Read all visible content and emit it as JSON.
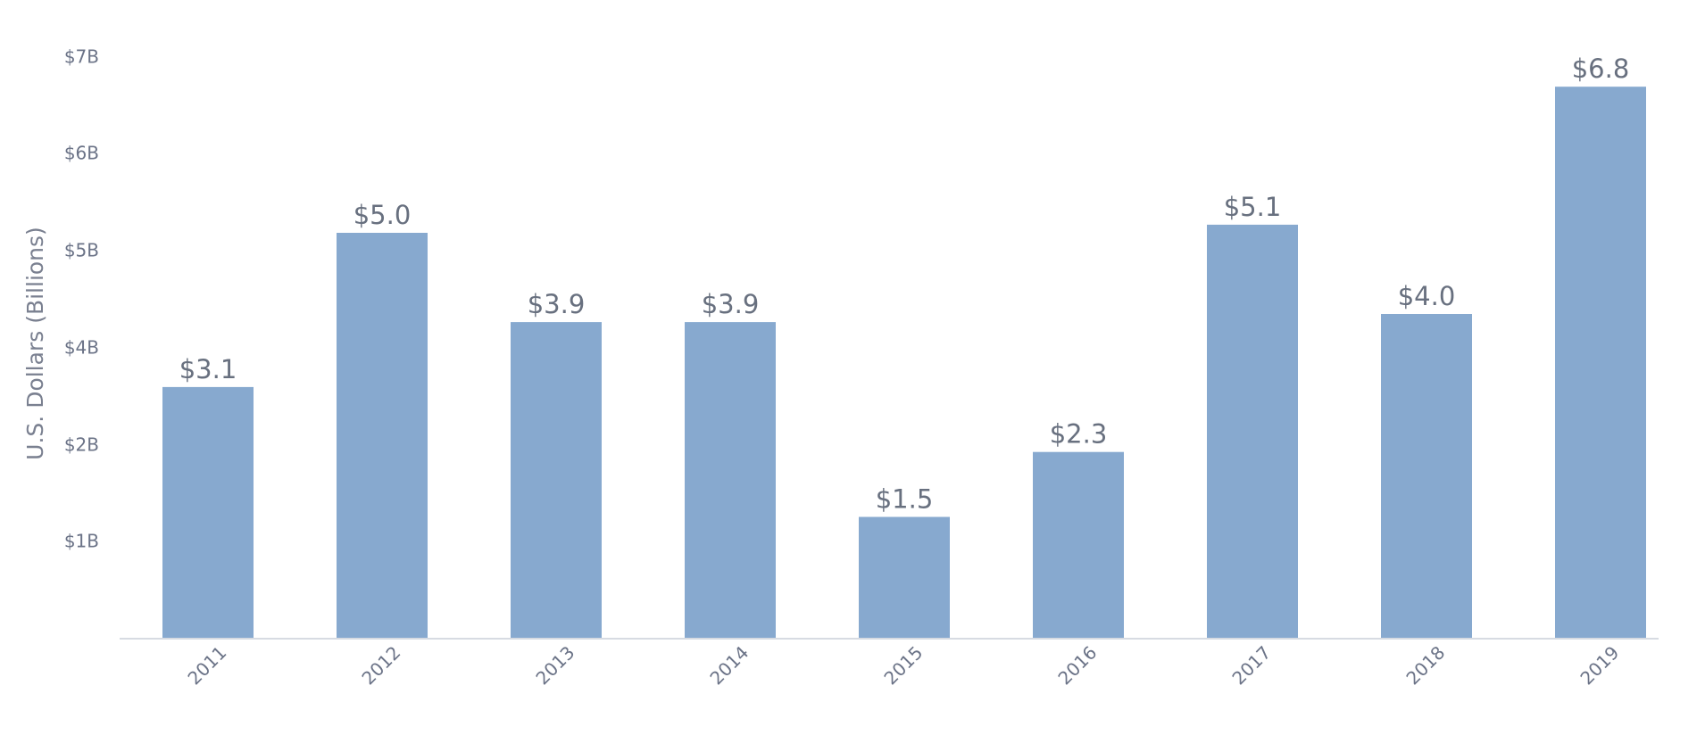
{
  "chart_data": {
    "type": "bar",
    "title": "",
    "xlabel": "",
    "ylabel": "U.S. Dollars (Billions)",
    "categories": [
      "2011",
      "2012",
      "2013",
      "2014",
      "2015",
      "2016",
      "2017",
      "2018",
      "2019"
    ],
    "values": [
      3.1,
      5.0,
      3.9,
      3.9,
      1.5,
      2.3,
      5.1,
      4.0,
      6.8
    ],
    "value_labels": [
      "$3.1",
      "$5.0",
      "$3.9",
      "$3.9",
      "$1.5",
      "$2.3",
      "$5.1",
      "$4.0",
      "$6.8"
    ],
    "y_ticks": [
      {
        "label": "$1B"
      },
      {
        "label": "$2B"
      },
      {
        "label": "$4B"
      },
      {
        "label": "$5B"
      },
      {
        "label": "$6B"
      },
      {
        "label": "$7B"
      }
    ],
    "grid": false,
    "bar_color": "#87a9cf",
    "axis_color": "#d7dbe2"
  }
}
